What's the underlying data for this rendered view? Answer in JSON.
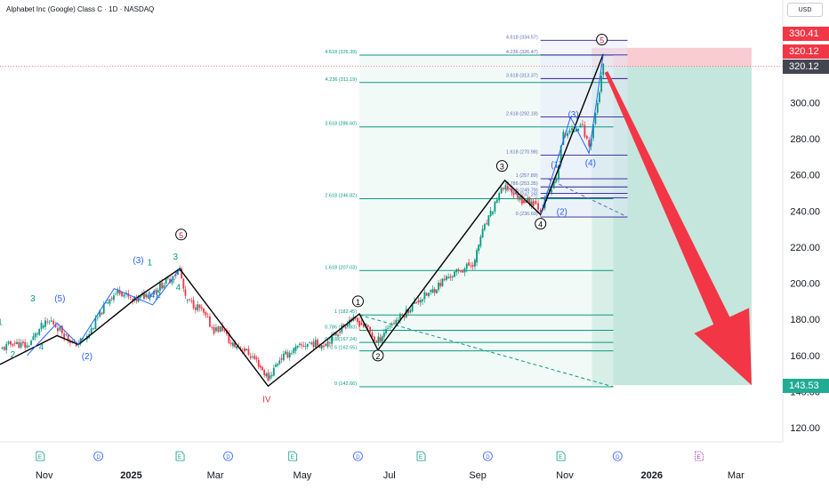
{
  "header": {
    "title": "Alphabet Inc (Google) Class C · 1D · NASDAQ",
    "currency": "USD"
  },
  "price_labels": {
    "top": "330.41",
    "mid": "320.12",
    "last": "320.12",
    "target": "143.53"
  },
  "colors": {
    "fib": "#089981",
    "fib_blue": "#2962ff",
    "up": "#089981",
    "down": "#f23645",
    "tp_zone": "#b2ddd2",
    "sl_zone": "#f7b6bd",
    "arrow": "#f23645",
    "tag_red": "#f23645",
    "tag_teal": "#22ab94",
    "tag_dark": "#434651"
  },
  "chart_data": {
    "type": "line",
    "title": "Alphabet Inc (Google) Class C · 1D · NASDAQ",
    "ylim": [
      110,
      340
    ],
    "y_ticks": [
      "120.00",
      "140.00",
      "160.00",
      "180.00",
      "200.00",
      "220.00",
      "240.00",
      "260.00",
      "280.00",
      "300.00"
    ],
    "x_ticks": [
      "Nov",
      "2025",
      "Mar",
      "May",
      "Jul",
      "Sep",
      "Nov",
      "2026",
      "Mar"
    ],
    "series": [
      {
        "values": [
          [
            "2024-10-01",
            163
          ],
          [
            "2024-10-10",
            167
          ],
          [
            "2024-10-20",
            165
          ],
          [
            "2024-10-30",
            176
          ],
          [
            "2024-11-06",
            179
          ],
          [
            "2024-11-15",
            172
          ],
          [
            "2024-11-22",
            166
          ],
          [
            "2024-12-01",
            170
          ],
          [
            "2024-12-10",
            183
          ],
          [
            "2024-12-17",
            192
          ],
          [
            "2024-12-24",
            196
          ],
          [
            "2025-01-02",
            190
          ],
          [
            "2025-01-10",
            193
          ],
          [
            "2025-01-17",
            196
          ],
          [
            "2025-01-24",
            200
          ],
          [
            "2025-01-31",
            204
          ],
          [
            "2025-02-04",
            208
          ],
          [
            "2025-02-08",
            191
          ],
          [
            "2025-02-18",
            186
          ],
          [
            "2025-02-28",
            174
          ],
          [
            "2025-03-06",
            175
          ],
          [
            "2025-03-12",
            166
          ],
          [
            "2025-03-20",
            164
          ],
          [
            "2025-03-30",
            157
          ],
          [
            "2025-04-07",
            147
          ],
          [
            "2025-04-15",
            158
          ],
          [
            "2025-04-25",
            163
          ],
          [
            "2025-05-06",
            167
          ],
          [
            "2025-05-16",
            166
          ],
          [
            "2025-05-26",
            173
          ],
          [
            "2025-06-03",
            180
          ],
          [
            "2025-06-10",
            178
          ],
          [
            "2025-06-16",
            175
          ],
          [
            "2025-06-22",
            167
          ],
          [
            "2025-06-30",
            176
          ],
          [
            "2025-07-10",
            182
          ],
          [
            "2025-07-20",
            190
          ],
          [
            "2025-07-30",
            195
          ],
          [
            "2025-08-10",
            203
          ],
          [
            "2025-08-20",
            207
          ],
          [
            "2025-08-30",
            212
          ],
          [
            "2025-09-03",
            226
          ],
          [
            "2025-09-10",
            238
          ],
          [
            "2025-09-16",
            250
          ],
          [
            "2025-09-22",
            253
          ],
          [
            "2025-10-02",
            246
          ],
          [
            "2025-10-10",
            245
          ],
          [
            "2025-10-15",
            241
          ],
          [
            "2025-10-21",
            250
          ],
          [
            "2025-10-26",
            258
          ],
          [
            "2025-10-31",
            283
          ],
          [
            "2025-11-06",
            284
          ],
          [
            "2025-11-12",
            289
          ],
          [
            "2025-11-18",
            276
          ],
          [
            "2025-11-24",
            300
          ],
          [
            "2025-11-28",
            320
          ]
        ]
      }
    ],
    "wave_path": [
      [
        "2024-10-01",
        155
      ],
      [
        "2024-11-10",
        171
      ],
      [
        "2024-11-25",
        166
      ],
      [
        "2025-01-05",
        192
      ],
      [
        "2025-02-04",
        208
      ],
      [
        "2025-04-07",
        143
      ],
      [
        "2025-06-10",
        183
      ],
      [
        "2025-06-23",
        163
      ],
      [
        "2025-09-20",
        257
      ],
      [
        "2025-10-15",
        238
      ],
      [
        "2025-11-28",
        327
      ]
    ],
    "wave_labels": [
      {
        "t": "1",
        "x": "2024-10-01",
        "y": 177
      },
      {
        "t": "2",
        "x": "2024-10-10",
        "y": 159
      },
      {
        "t": "3",
        "x": "2024-10-24",
        "y": 190
      },
      {
        "t": "4",
        "x": "2024-10-30",
        "y": 163
      },
      {
        "t": "(5)",
        "x": "2024-11-12",
        "y": 190
      },
      {
        "t": "(2)",
        "x": "2024-12-01",
        "y": 158
      },
      {
        "t": "(3)",
        "x": "2025-01-06",
        "y": 211
      },
      {
        "t": "1",
        "x": "2025-01-14",
        "y": 210
      },
      {
        "t": "(4)",
        "x": "2025-01-16",
        "y": 192
      },
      {
        "t": "2",
        "x": "2025-01-20",
        "y": 192
      },
      {
        "t": "3",
        "x": "2025-02-01",
        "y": 213
      },
      {
        "t": "4",
        "x": "2025-02-03",
        "y": 196
      },
      {
        "t": "5",
        "x": "2025-02-05",
        "y": 225
      },
      {
        "t": "IV",
        "x": "2025-04-06",
        "y": 134
      },
      {
        "t": "1",
        "x": "2025-06-09",
        "y": 188
      },
      {
        "t": "2",
        "x": "2025-06-23",
        "y": 158
      },
      {
        "t": "3",
        "x": "2025-09-18",
        "y": 263
      },
      {
        "t": "(1)",
        "x": "2025-10-26",
        "y": 264
      },
      {
        "t": "(2)",
        "x": "2025-10-30",
        "y": 238
      },
      {
        "t": "4",
        "x": "2025-10-15",
        "y": 231
      },
      {
        "t": "(3)",
        "x": "2025-11-07",
        "y": 292
      },
      {
        "t": "(4)",
        "x": "2025-11-19",
        "y": 265
      },
      {
        "t": "5",
        "x": "2025-11-27",
        "y": 333
      }
    ],
    "fib_large": [
      {
        "label": "4.618 (326.39)",
        "y": 326.39
      },
      {
        "label": "4.236 (311.19)",
        "y": 311.19
      },
      {
        "label": "3.618 (286.60)",
        "y": 286.6
      },
      {
        "label": "2.618 (246.82)",
        "y": 246.82
      },
      {
        "label": "1.618 (207.03)",
        "y": 207.03
      },
      {
        "label": "1 (182.45)",
        "y": 182.45
      },
      {
        "label": "0.786 (173.93)",
        "y": 173.93
      },
      {
        "label": "0.618 (167.24)",
        "y": 167.24
      },
      {
        "label": "0.5 (162.55)",
        "y": 162.55
      },
      {
        "label": "0 (142.66)",
        "y": 142.66
      }
    ],
    "fib_small": [
      {
        "label": "4.618 (334.57)",
        "y": 334.57
      },
      {
        "label": "4.236 (326.47)",
        "y": 326.47
      },
      {
        "label": "3.618 (313.37)",
        "y": 313.37
      },
      {
        "label": "2.618 (292.18)",
        "y": 292.18
      },
      {
        "label": "1.618 (270.98)",
        "y": 270.98
      },
      {
        "label": "1 (257.89)",
        "y": 257.89
      },
      {
        "label": "0.786 (253.35)",
        "y": 253.35
      },
      {
        "label": "0.618 (249.79)",
        "y": 249.79
      },
      {
        "label": "0.5 (247.29)",
        "y": 247.29
      },
      {
        "label": "0 (236.69)",
        "y": 236.69
      }
    ],
    "position": {
      "entry": 320.12,
      "stop": 330.41,
      "target": 143.53,
      "start": "2025-11-20",
      "end": "2026-03-12"
    },
    "arrow": {
      "from": [
        "2025-11-30",
        317
      ],
      "to": [
        "2026-03-12",
        143.53
      ]
    },
    "events": [
      {
        "t": "E",
        "x": "2024-10-29"
      },
      {
        "t": "D",
        "x": "2024-12-09"
      },
      {
        "t": "E",
        "x": "2025-02-04"
      },
      {
        "t": "D",
        "x": "2025-03-10"
      },
      {
        "t": "E",
        "x": "2025-04-24"
      },
      {
        "t": "D",
        "x": "2025-06-09"
      },
      {
        "t": "E",
        "x": "2025-07-23"
      },
      {
        "t": "D",
        "x": "2025-09-08"
      },
      {
        "t": "E",
        "x": "2025-10-29"
      },
      {
        "t": "D",
        "x": "2025-12-08"
      },
      {
        "t": "E",
        "x": "2026-02-03"
      }
    ]
  }
}
